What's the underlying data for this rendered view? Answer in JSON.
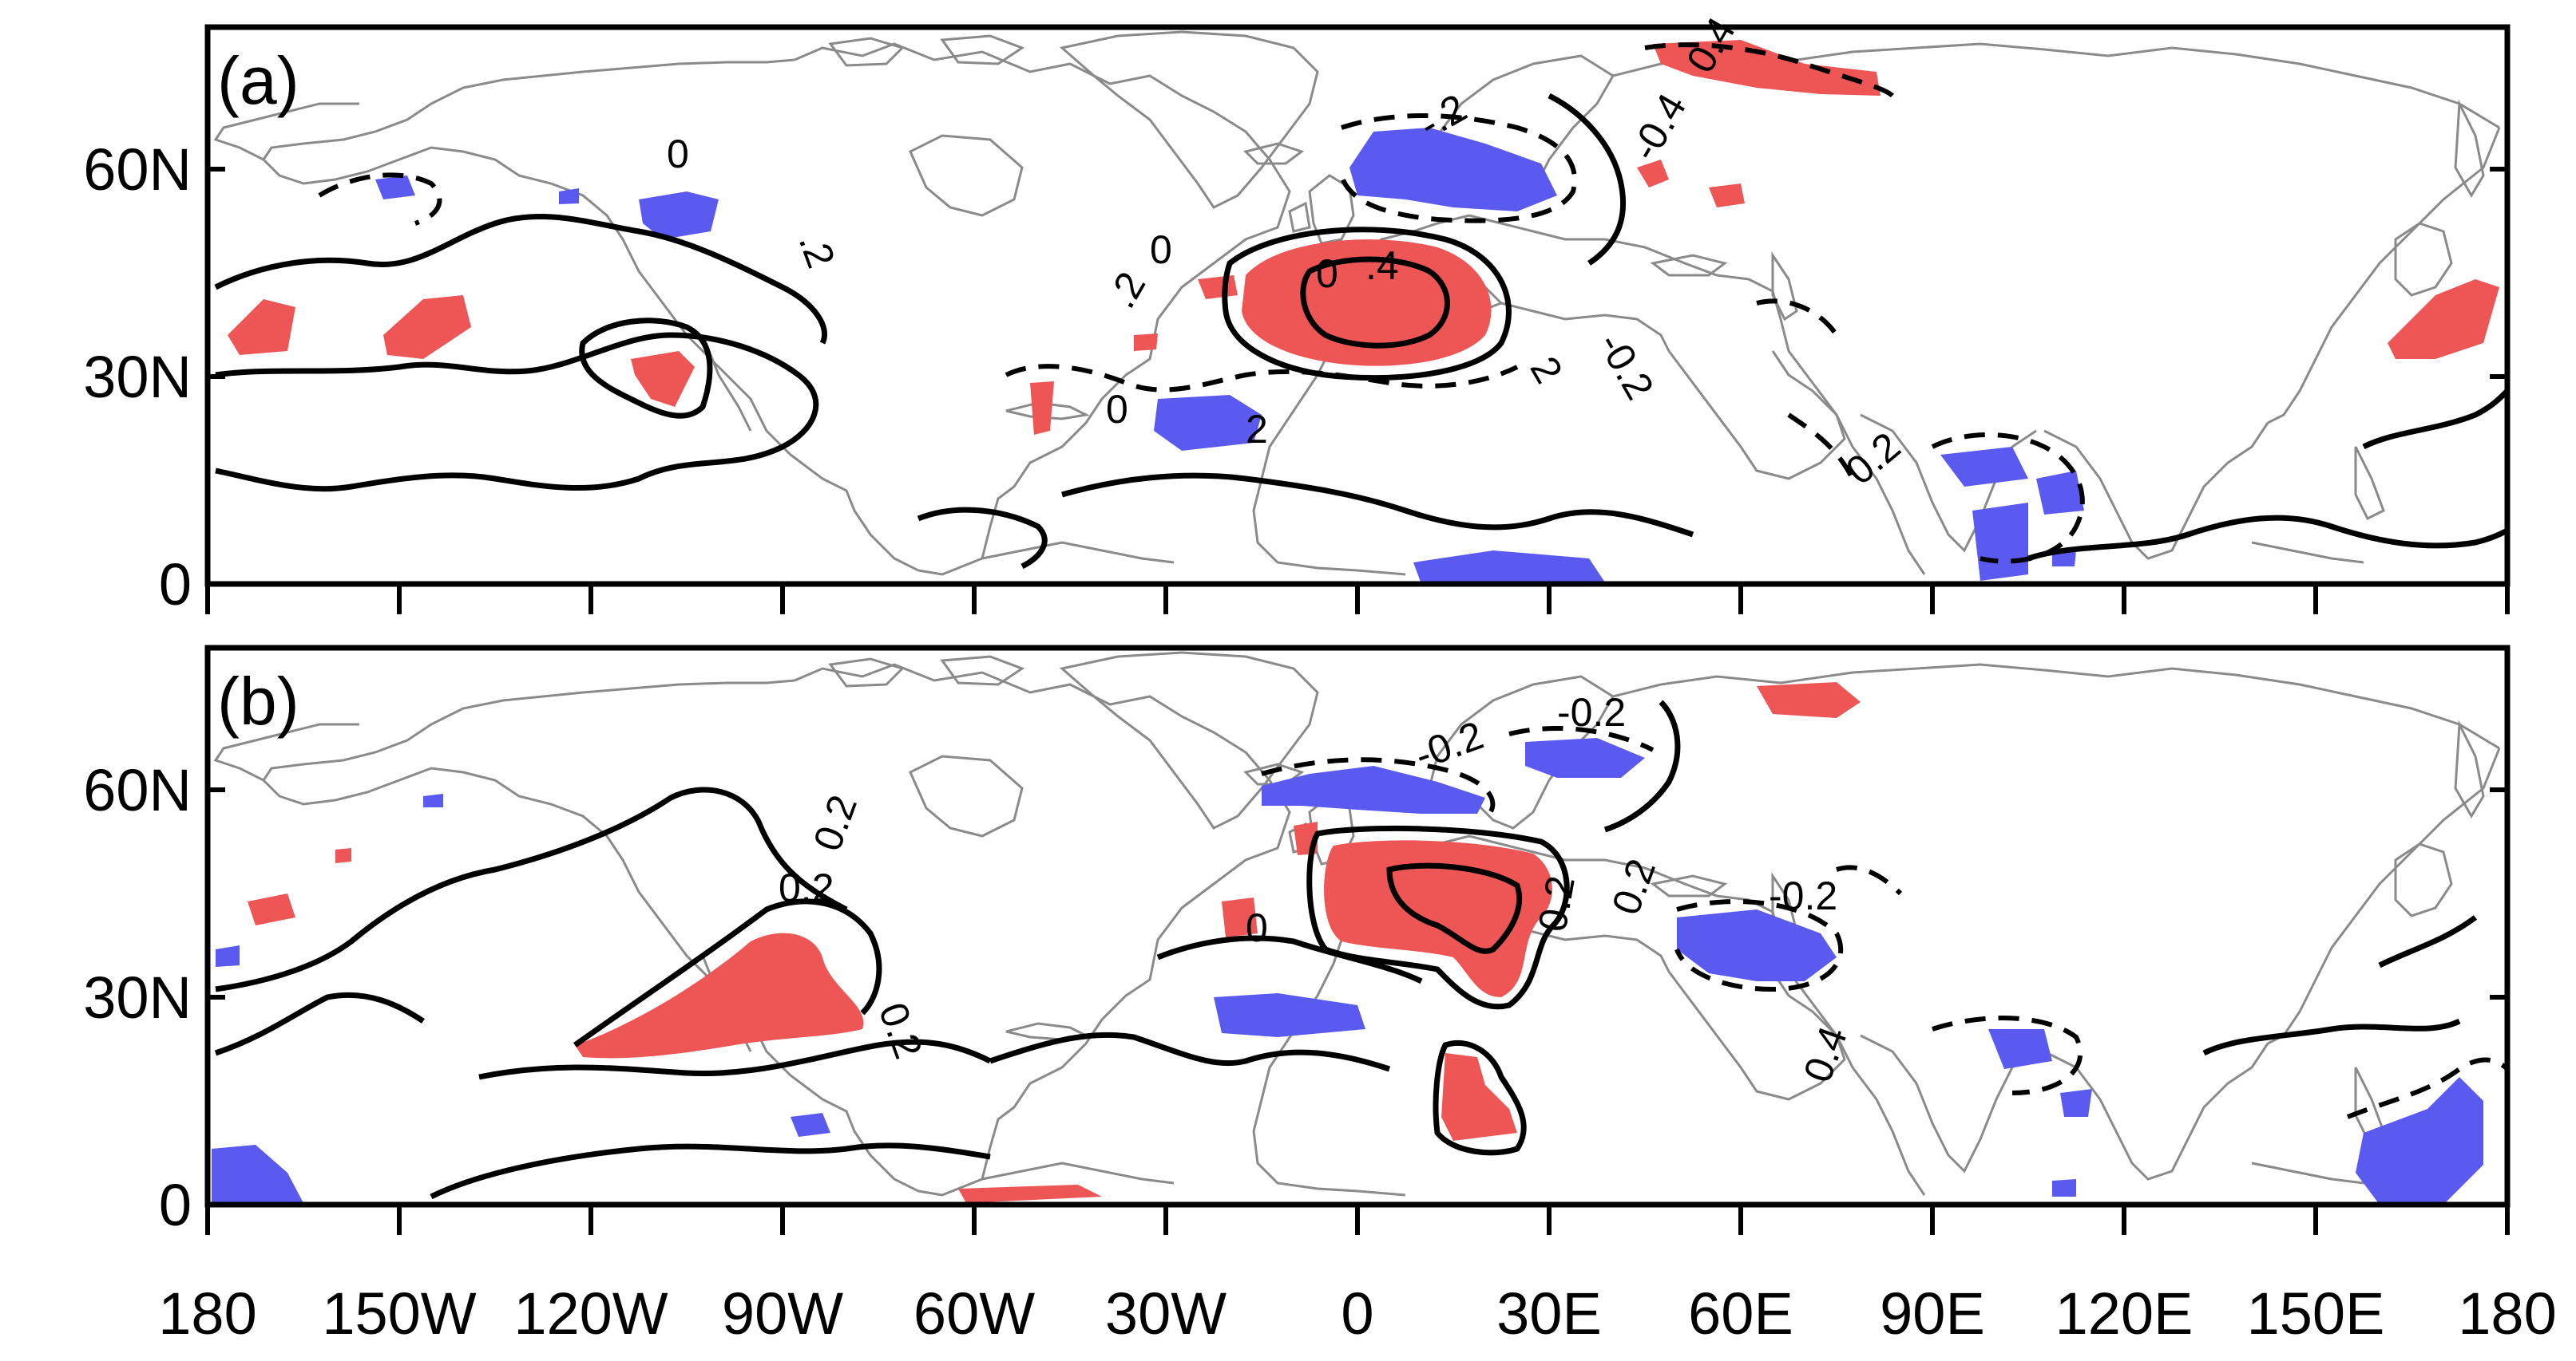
{
  "figure": {
    "colors": {
      "positive_shading": "#ee5555",
      "negative_shading": "#5a5af0",
      "contour": "#000000",
      "coastline": "#8a8a8a"
    },
    "x_ticks": [
      "180",
      "150W",
      "120W",
      "90W",
      "60W",
      "30W",
      "0",
      "30E",
      "60E",
      "90E",
      "120E",
      "150E",
      "180"
    ],
    "y_ticks": [
      "0",
      "30N",
      "60N"
    ],
    "panels": [
      {
        "label": "(a)",
        "contour_labels": [
          "0",
          ".2",
          "0",
          "0",
          ".4",
          "0",
          ".2",
          "-0.2",
          "2",
          "2",
          "-.2",
          "0.4",
          "-0.4",
          "0.2"
        ]
      },
      {
        "label": "(b)",
        "contour_labels": [
          "-0.2",
          "-0.2",
          "0.2",
          "0.2",
          "0.2",
          "-0.2",
          "0.4",
          "0",
          "0.2",
          "0.2"
        ]
      }
    ]
  }
}
